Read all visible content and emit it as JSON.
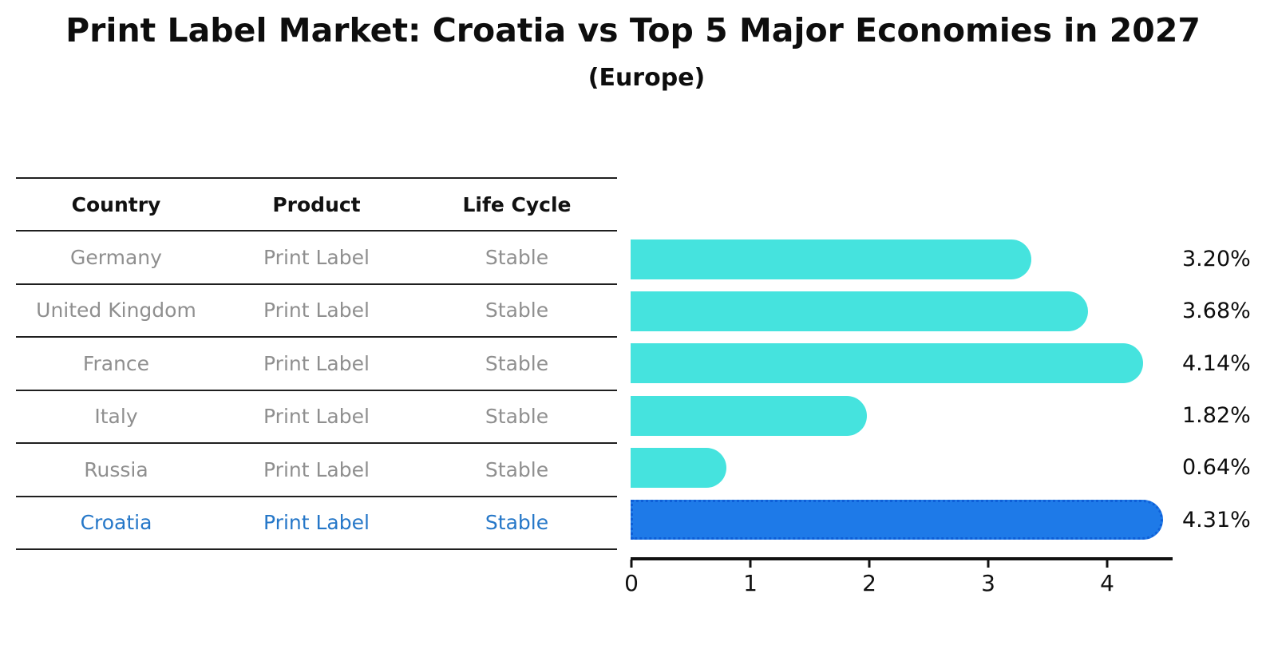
{
  "title": "Print Label Market: Croatia vs Top 5 Major Economies in 2027",
  "subtitle": "(Europe)",
  "table": {
    "headers": [
      "Country",
      "Product",
      "Life Cycle"
    ],
    "rows": [
      {
        "country": "Germany",
        "product": "Print Label",
        "life_cycle": "Stable",
        "highlighted": false
      },
      {
        "country": "United Kingdom",
        "product": "Print Label",
        "life_cycle": "Stable",
        "highlighted": false
      },
      {
        "country": "France",
        "product": "Print Label",
        "life_cycle": "Stable",
        "highlighted": false
      },
      {
        "country": "Italy",
        "product": "Print Label",
        "life_cycle": "Stable",
        "highlighted": false
      },
      {
        "country": "Russia",
        "product": "Print Label",
        "life_cycle": "Stable",
        "highlighted": false
      },
      {
        "country": "Croatia",
        "product": "Print Label",
        "life_cycle": "Stable",
        "highlighted": true
      }
    ]
  },
  "chart_data": {
    "type": "bar",
    "orientation": "horizontal",
    "title": "Print Label Market: Croatia vs Top 5 Major Economies in 2027 (Europe)",
    "categories": [
      "Germany",
      "United Kingdom",
      "France",
      "Italy",
      "Russia",
      "Croatia"
    ],
    "values": [
      3.2,
      3.68,
      4.14,
      1.82,
      0.64,
      4.31
    ],
    "value_labels": [
      "3.20%",
      "3.68%",
      "4.14%",
      "1.82%",
      "0.64%",
      "4.31%"
    ],
    "x_ticks": [
      "0",
      "1",
      "2",
      "3",
      "4"
    ],
    "xlim": [
      0,
      4.55
    ],
    "grid": false,
    "legend": false,
    "highlight_index": 5,
    "bar_color": "#45e3de",
    "highlight_bar_color": "#1e7ae8",
    "highlight_border_color": "#0e5fd8"
  },
  "colors": {
    "background": "#ffffff",
    "muted_text": "#8f8f8f",
    "highlight_text": "#2577c8",
    "axis": "#111111"
  }
}
